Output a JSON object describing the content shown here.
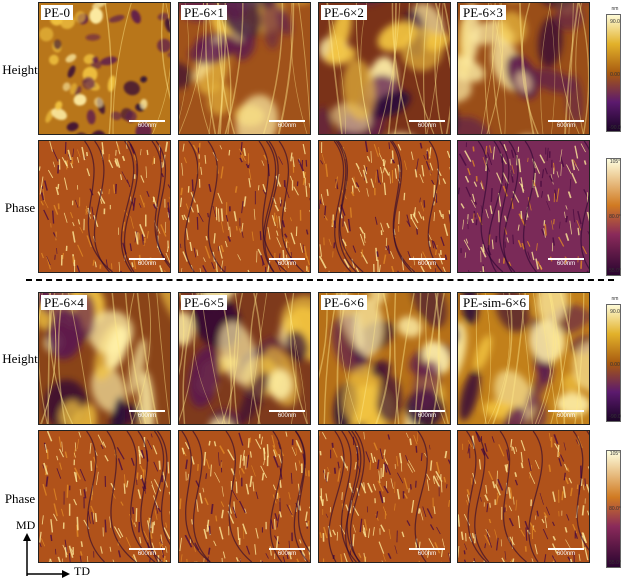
{
  "colors": {
    "height_scale": [
      "#1a0426",
      "#5c1a6e",
      "#a04a14",
      "#cf8216",
      "#f0c23a",
      "#fffbd8"
    ],
    "phase_scale": [
      "#2a0530",
      "#6e1e68",
      "#b0401c",
      "#d88a26",
      "#f4d060",
      "#fffff0"
    ]
  },
  "row_labels": {
    "height": "Height",
    "phase": "Phase"
  },
  "scale_bar": "600nm",
  "groups": [
    {
      "samples": [
        "PE-0",
        "PE-6×1",
        "PE-6×2",
        "PE-6×3"
      ]
    },
    {
      "samples": [
        "PE-6×4",
        "PE-6×5",
        "PE-6×6",
        "PE-sim-6×6"
      ]
    }
  ],
  "colorbars": {
    "height": {
      "unit": "nm",
      "max": "90.0",
      "mid": "0.00",
      "min": "-90.0"
    },
    "phase": {
      "max": "105°",
      "mid": "80.0°",
      "min": "55.0°"
    }
  },
  "axes": {
    "vertical": "MD",
    "horizontal": "TD"
  }
}
